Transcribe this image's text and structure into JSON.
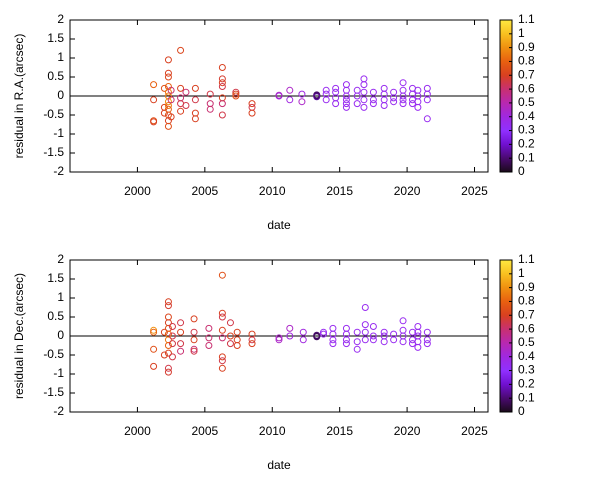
{
  "chart_data": [
    {
      "type": "scatter",
      "xlabel": "date",
      "ylabel": "residual in R.A.(arcsec)",
      "xlim": [
        1995,
        2026
      ],
      "xticks": [
        2000,
        2005,
        2010,
        2015,
        2020,
        2025
      ],
      "ylim": [
        -2,
        2
      ],
      "yticks": [
        -2,
        -1.5,
        -1,
        -0.5,
        0,
        0.5,
        1,
        1.5,
        2
      ],
      "clim": [
        0,
        1.1
      ],
      "cticks": [
        0,
        0.1,
        0.2,
        0.3,
        0.4,
        0.5,
        0.6,
        0.7,
        0.8,
        0.9,
        1,
        1.1
      ],
      "colormap": [
        "#1a0a1a",
        "#4a0a70",
        "#7010d0",
        "#9030ff",
        "#a028e0",
        "#b828b0",
        "#c83070",
        "#d84020",
        "#e86010",
        "#f09010",
        "#f8c020",
        "#ffe840"
      ],
      "zeroline": true,
      "series": [
        {
          "x": [
            2001.2,
            2001.2,
            2001.2,
            2001.2,
            2002.0,
            2002.0,
            2002.0,
            2002.3,
            2002.3,
            2002.3,
            2002.3,
            2002.3,
            2002.3,
            2002.3,
            2002.3,
            2002.3,
            2002.3,
            2002.3,
            2002.3,
            2002.5,
            2002.5,
            2002.5,
            2003.2,
            2003.2,
            2003.2,
            2003.2,
            2003.2,
            2003.6,
            2003.6,
            2004.3,
            2004.3,
            2004.3,
            2004.3,
            2005.4,
            2005.4,
            2005.4,
            2006.3,
            2006.3,
            2006.3,
            2006.3,
            2006.3,
            2006.3,
            2006.3,
            2007.3,
            2007.3,
            2007.3,
            2008.5,
            2008.5,
            2008.5,
            2010.5,
            2010.5,
            2011.3,
            2011.3,
            2012.2,
            2012.2,
            2013.3,
            2013.3,
            2013.3,
            2013.3,
            2014.0,
            2014.0,
            2014.0,
            2014.7,
            2014.7,
            2014.7,
            2014.7,
            2015.5,
            2015.5,
            2015.5,
            2015.5,
            2015.5,
            2015.5,
            2016.3,
            2016.3,
            2016.3,
            2016.8,
            2016.8,
            2016.8,
            2016.8,
            2016.8,
            2017.5,
            2017.5,
            2017.5,
            2018.3,
            2018.3,
            2018.3,
            2018.3,
            2019.0,
            2019.0,
            2019.0,
            2019.7,
            2019.7,
            2019.7,
            2019.7,
            2019.7,
            2020.4,
            2020.4,
            2020.4,
            2020.4,
            2020.8,
            2020.8,
            2020.8,
            2020.8,
            2021.5,
            2021.5,
            2021.5,
            2021.5
          ],
          "values": [
            -0.65,
            -0.68,
            0.3,
            -0.1,
            -0.3,
            0.2,
            -0.45,
            0.95,
            0.6,
            0.5,
            0.25,
            0.1,
            0,
            -0.15,
            -0.25,
            -0.35,
            -0.5,
            -0.65,
            -0.8,
            0.15,
            -0.1,
            -0.55,
            1.2,
            0.2,
            -0.05,
            -0.2,
            -0.4,
            0.1,
            -0.25,
            0.2,
            -0.1,
            -0.45,
            -0.6,
            0.05,
            -0.2,
            -0.35,
            0.75,
            0.45,
            0.35,
            0.25,
            -0.05,
            -0.2,
            -0.5,
            0.1,
            0.05,
            0,
            -0.2,
            -0.3,
            -0.45,
            0,
            0.02,
            0.15,
            -0.1,
            0.05,
            -0.15,
            0,
            0.01,
            0.03,
            -0.02,
            0.05,
            -0.1,
            0.15,
            0.2,
            0.1,
            -0.05,
            -0.2,
            0.3,
            0.15,
            0,
            -0.1,
            -0.2,
            -0.3,
            0.15,
            0,
            -0.2,
            0.45,
            0.3,
            0.1,
            -0.1,
            -0.3,
            0.1,
            -0.1,
            -0.2,
            0.2,
            0.05,
            -0.1,
            -0.25,
            0.1,
            -0.05,
            -0.15,
            0.35,
            0.15,
            0,
            -0.1,
            -0.2,
            0.2,
            0.05,
            -0.1,
            -0.2,
            0.15,
            0,
            -0.15,
            -0.3,
            0.2,
            0.05,
            -0.1,
            -0.6
          ],
          "color_values": [
            0.75,
            0.7,
            0.8,
            0.7,
            0.7,
            0.75,
            0.7,
            0.7,
            0.7,
            0.72,
            0.8,
            0.85,
            0.85,
            0.9,
            0.85,
            0.8,
            0.75,
            0.7,
            0.75,
            0.6,
            0.6,
            0.7,
            0.72,
            0.7,
            0.6,
            0.65,
            0.7,
            0.6,
            0.65,
            0.7,
            0.65,
            0.7,
            0.7,
            0.65,
            0.6,
            0.6,
            0.7,
            0.68,
            0.7,
            0.65,
            0.7,
            0.6,
            0.65,
            0.65,
            0.7,
            0.75,
            0.7,
            0.65,
            0.7,
            0.4,
            0.45,
            0.45,
            0.4,
            0.4,
            0.45,
            0.05,
            0.08,
            0.1,
            0.15,
            0.35,
            0.35,
            0.35,
            0.35,
            0.35,
            0.35,
            0.35,
            0.35,
            0.35,
            0.35,
            0.35,
            0.35,
            0.35,
            0.35,
            0.35,
            0.35,
            0.35,
            0.35,
            0.35,
            0.35,
            0.35,
            0.35,
            0.35,
            0.35,
            0.35,
            0.35,
            0.35,
            0.35,
            0.35,
            0.35,
            0.35,
            0.35,
            0.35,
            0.35,
            0.35,
            0.35,
            0.35,
            0.35,
            0.35,
            0.35,
            0.35,
            0.35,
            0.35,
            0.35,
            0.35,
            0.35,
            0.35,
            0.35
          ]
        }
      ]
    },
    {
      "type": "scatter",
      "xlabel": "date",
      "ylabel": "residual in Dec.(arcsec)",
      "xlim": [
        1995,
        2026
      ],
      "xticks": [
        2000,
        2005,
        2010,
        2015,
        2020,
        2025
      ],
      "ylim": [
        -2,
        2
      ],
      "yticks": [
        -2,
        -1.5,
        -1,
        -0.5,
        0,
        0.5,
        1,
        1.5,
        2
      ],
      "clim": [
        0,
        1.1
      ],
      "cticks": [
        0,
        0.1,
        0.2,
        0.3,
        0.4,
        0.5,
        0.6,
        0.7,
        0.8,
        0.9,
        1,
        1.1
      ],
      "colormap": [
        "#1a0a1a",
        "#4a0a70",
        "#7010d0",
        "#9030ff",
        "#a028e0",
        "#b828b0",
        "#c83070",
        "#d84020",
        "#e86010",
        "#f09010",
        "#f8c020",
        "#ffe840"
      ],
      "zeroline": true,
      "series": [
        {
          "x": [
            2001.2,
            2001.2,
            2001.2,
            2001.2,
            2002.0,
            2002.0,
            2002.3,
            2002.3,
            2002.3,
            2002.3,
            2002.3,
            2002.3,
            2002.3,
            2002.3,
            2002.3,
            2002.3,
            2002.3,
            2002.6,
            2002.6,
            2002.6,
            2002.6,
            2003.2,
            2003.2,
            2003.2,
            2003.2,
            2004.2,
            2004.2,
            2004.2,
            2004.2,
            2004.2,
            2005.3,
            2005.3,
            2005.3,
            2006.3,
            2006.3,
            2006.3,
            2006.3,
            2006.3,
            2006.3,
            2006.3,
            2006.3,
            2006.9,
            2006.9,
            2006.9,
            2007.4,
            2007.4,
            2007.4,
            2008.5,
            2008.5,
            2008.5,
            2010.5,
            2010.5,
            2011.3,
            2011.3,
            2012.3,
            2012.3,
            2013.3,
            2013.3,
            2013.3,
            2013.8,
            2013.8,
            2014.5,
            2014.5,
            2014.5,
            2014.5,
            2015.5,
            2015.5,
            2015.5,
            2015.5,
            2016.3,
            2016.3,
            2016.3,
            2016.9,
            2016.9,
            2016.9,
            2016.9,
            2017.5,
            2017.5,
            2017.5,
            2018.3,
            2018.3,
            2018.3,
            2019.0,
            2019.0,
            2019.7,
            2019.7,
            2019.7,
            2019.7,
            2020.4,
            2020.4,
            2020.4,
            2020.8,
            2020.8,
            2020.8,
            2020.8,
            2020.8,
            2021.5,
            2021.5,
            2021.5
          ],
          "values": [
            0.15,
            0.1,
            -0.35,
            -0.8,
            -0.5,
            0.1,
            0.9,
            0.8,
            0.5,
            0.35,
            0.2,
            0.05,
            -0.1,
            -0.25,
            -0.45,
            -0.85,
            -0.95,
            0.25,
            0,
            -0.2,
            -0.55,
            0.35,
            0.1,
            -0.2,
            -0.4,
            0.45,
            0.1,
            -0.1,
            -0.35,
            -0.4,
            0.2,
            -0.05,
            -0.25,
            1.6,
            0.6,
            0.5,
            0.15,
            -0.05,
            -0.55,
            -0.65,
            -0.85,
            0.35,
            0,
            -0.2,
            0.1,
            -0.1,
            -0.25,
            0.05,
            -0.1,
            -0.2,
            -0.05,
            -0.1,
            0.2,
            0,
            0.1,
            -0.1,
            0,
            0.02,
            -0.02,
            0.05,
            0.1,
            0.2,
            0.05,
            -0.1,
            -0.2,
            0.2,
            0.05,
            -0.1,
            -0.2,
            0.1,
            -0.15,
            -0.35,
            0.75,
            0.3,
            0.1,
            -0.1,
            0.25,
            0,
            -0.1,
            0.1,
            0,
            -0.15,
            0.05,
            -0.1,
            0.4,
            0.15,
            0,
            -0.15,
            0.1,
            -0.1,
            -0.2,
            0.25,
            0.1,
            0,
            -0.15,
            -0.3,
            0.1,
            -0.1,
            -0.2
          ],
          "color_values": [
            0.9,
            0.8,
            0.75,
            0.7,
            0.7,
            0.7,
            0.7,
            0.68,
            0.72,
            0.7,
            0.75,
            0.8,
            0.85,
            0.8,
            0.7,
            0.65,
            0.68,
            0.65,
            0.65,
            0.65,
            0.65,
            0.65,
            0.7,
            0.65,
            0.6,
            0.7,
            0.65,
            0.7,
            0.6,
            0.65,
            0.6,
            0.6,
            0.6,
            0.75,
            0.7,
            0.65,
            0.7,
            0.6,
            0.7,
            0.65,
            0.7,
            0.65,
            0.7,
            0.65,
            0.7,
            0.7,
            0.7,
            0.7,
            0.65,
            0.7,
            0.45,
            0.45,
            0.45,
            0.4,
            0.4,
            0.4,
            0.05,
            0.1,
            0.08,
            0.35,
            0.35,
            0.35,
            0.35,
            0.35,
            0.35,
            0.35,
            0.35,
            0.35,
            0.35,
            0.35,
            0.35,
            0.35,
            0.35,
            0.35,
            0.35,
            0.35,
            0.35,
            0.35,
            0.35,
            0.35,
            0.35,
            0.35,
            0.35,
            0.35,
            0.35,
            0.35,
            0.35,
            0.35,
            0.35,
            0.35,
            0.35,
            0.35,
            0.35,
            0.35,
            0.35,
            0.35,
            0.35,
            0.35,
            0.35
          ]
        }
      ]
    }
  ]
}
